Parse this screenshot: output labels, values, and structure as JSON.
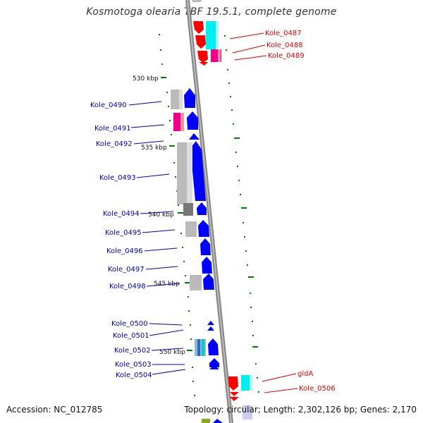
{
  "title": "Kosmotoga olearia TBF 19.5.1, complete genome",
  "footer": {
    "accession": "Accession: NC_012785",
    "topology": "Topology: circular; Length: 2,302,126 bp; Genes: 2,170"
  },
  "colors": {
    "forward_label": "#0000bb",
    "reverse_label": "#dd0000",
    "forward_gene": "#0000ff",
    "reverse_gene": "#ff0000",
    "backbone": "#888888",
    "tick": "#007700",
    "cyan": "#00eeee",
    "magenta": "#ee0088",
    "gray": "#bbbbbb"
  },
  "scale_labels": [
    "530 kbp",
    "535 kbp",
    "540 kbp",
    "545 kbp",
    "550 kbp"
  ],
  "reverse_labels": [
    "Kole_0487",
    "Kole_0488",
    "Kole_0489",
    "gldA",
    "Kole_0506"
  ],
  "forward_labels": [
    "Kole_0490",
    "Kole_0491",
    "Kole_0492",
    "Kole_0493",
    "Kole_0494",
    "Kole_0495",
    "Kole_0496",
    "Kole_0497",
    "Kole_0498",
    "Kole_0500",
    "Kole_0501",
    "Kole_0502",
    "Kole_0503",
    "Kole_0504"
  ]
}
